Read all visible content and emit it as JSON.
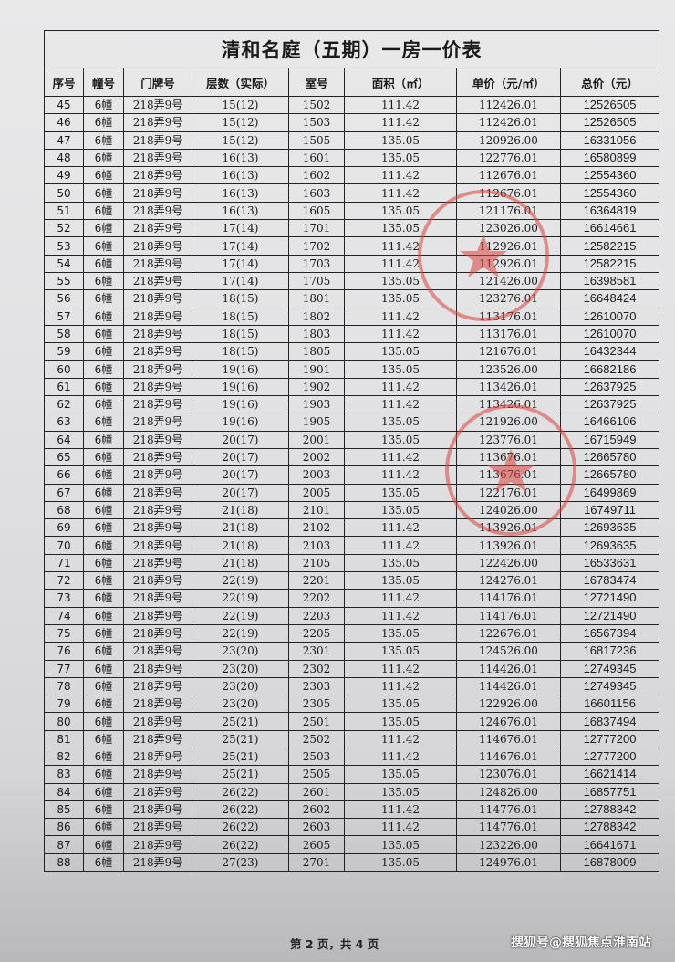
{
  "title": "清和名庭（五期）一房一价表",
  "headers": [
    "序号",
    "幢号",
    "门牌号",
    "层数（实际）",
    "室号",
    "面积（㎡）",
    "单价（元/㎡）",
    "总价（元）"
  ],
  "rows": [
    [
      "45",
      "6幢",
      "218弄9号",
      "15(12)",
      "1502",
      "111.42",
      "112426.01",
      "12526505"
    ],
    [
      "46",
      "6幢",
      "218弄9号",
      "15(12)",
      "1503",
      "111.42",
      "112426.01",
      "12526505"
    ],
    [
      "47",
      "6幢",
      "218弄9号",
      "15(12)",
      "1505",
      "135.05",
      "120926.00",
      "16331056"
    ],
    [
      "48",
      "6幢",
      "218弄9号",
      "16(13)",
      "1601",
      "135.05",
      "122776.01",
      "16580899"
    ],
    [
      "49",
      "6幢",
      "218弄9号",
      "16(13)",
      "1602",
      "111.42",
      "112676.01",
      "12554360"
    ],
    [
      "50",
      "6幢",
      "218弄9号",
      "16(13)",
      "1603",
      "111.42",
      "112676.01",
      "12554360"
    ],
    [
      "51",
      "6幢",
      "218弄9号",
      "16(13)",
      "1605",
      "135.05",
      "121176.01",
      "16364819"
    ],
    [
      "52",
      "6幢",
      "218弄9号",
      "17(14)",
      "1701",
      "135.05",
      "123026.00",
      "16614661"
    ],
    [
      "53",
      "6幢",
      "218弄9号",
      "17(14)",
      "1702",
      "111.42",
      "112926.01",
      "12582215"
    ],
    [
      "54",
      "6幢",
      "218弄9号",
      "17(14)",
      "1703",
      "111.42",
      "112926.01",
      "12582215"
    ],
    [
      "55",
      "6幢",
      "218弄9号",
      "17(14)",
      "1705",
      "135.05",
      "121426.00",
      "16398581"
    ],
    [
      "56",
      "6幢",
      "218弄9号",
      "18(15)",
      "1801",
      "135.05",
      "123276.01",
      "16648424"
    ],
    [
      "57",
      "6幢",
      "218弄9号",
      "18(15)",
      "1802",
      "111.42",
      "113176.01",
      "12610070"
    ],
    [
      "58",
      "6幢",
      "218弄9号",
      "18(15)",
      "1803",
      "111.42",
      "113176.01",
      "12610070"
    ],
    [
      "59",
      "6幢",
      "218弄9号",
      "18(15)",
      "1805",
      "135.05",
      "121676.01",
      "16432344"
    ],
    [
      "60",
      "6幢",
      "218弄9号",
      "19(16)",
      "1901",
      "135.05",
      "123526.00",
      "16682186"
    ],
    [
      "61",
      "6幢",
      "218弄9号",
      "19(16)",
      "1902",
      "111.42",
      "113426.01",
      "12637925"
    ],
    [
      "62",
      "6幢",
      "218弄9号",
      "19(16)",
      "1903",
      "111.42",
      "113426.01",
      "12637925"
    ],
    [
      "63",
      "6幢",
      "218弄9号",
      "19(16)",
      "1905",
      "135.05",
      "121926.00",
      "16466106"
    ],
    [
      "64",
      "6幢",
      "218弄9号",
      "20(17)",
      "2001",
      "135.05",
      "123776.01",
      "16715949"
    ],
    [
      "65",
      "6幢",
      "218弄9号",
      "20(17)",
      "2002",
      "111.42",
      "113676.01",
      "12665780"
    ],
    [
      "66",
      "6幢",
      "218弄9号",
      "20(17)",
      "2003",
      "111.42",
      "113676.01",
      "12665780"
    ],
    [
      "67",
      "6幢",
      "218弄9号",
      "20(17)",
      "2005",
      "135.05",
      "122176.01",
      "16499869"
    ],
    [
      "68",
      "6幢",
      "218弄9号",
      "21(18)",
      "2101",
      "135.05",
      "124026.00",
      "16749711"
    ],
    [
      "69",
      "6幢",
      "218弄9号",
      "21(18)",
      "2102",
      "111.42",
      "113926.01",
      "12693635"
    ],
    [
      "70",
      "6幢",
      "218弄9号",
      "21(18)",
      "2103",
      "111.42",
      "113926.01",
      "12693635"
    ],
    [
      "71",
      "6幢",
      "218弄9号",
      "21(18)",
      "2105",
      "135.05",
      "122426.00",
      "16533631"
    ],
    [
      "72",
      "6幢",
      "218弄9号",
      "22(19)",
      "2201",
      "135.05",
      "124276.01",
      "16783474"
    ],
    [
      "73",
      "6幢",
      "218弄9号",
      "22(19)",
      "2202",
      "111.42",
      "114176.01",
      "12721490"
    ],
    [
      "74",
      "6幢",
      "218弄9号",
      "22(19)",
      "2203",
      "111.42",
      "114176.01",
      "12721490"
    ],
    [
      "75",
      "6幢",
      "218弄9号",
      "22(19)",
      "2205",
      "135.05",
      "122676.01",
      "16567394"
    ],
    [
      "76",
      "6幢",
      "218弄9号",
      "23(20)",
      "2301",
      "135.05",
      "124526.00",
      "16817236"
    ],
    [
      "77",
      "6幢",
      "218弄9号",
      "23(20)",
      "2302",
      "111.42",
      "114426.01",
      "12749345"
    ],
    [
      "78",
      "6幢",
      "218弄9号",
      "23(20)",
      "2303",
      "111.42",
      "114426.01",
      "12749345"
    ],
    [
      "79",
      "6幢",
      "218弄9号",
      "23(20)",
      "2305",
      "135.05",
      "122926.00",
      "16601156"
    ],
    [
      "80",
      "6幢",
      "218弄9号",
      "25(21)",
      "2501",
      "135.05",
      "124676.01",
      "16837494"
    ],
    [
      "81",
      "6幢",
      "218弄9号",
      "25(21)",
      "2502",
      "111.42",
      "114676.01",
      "12777200"
    ],
    [
      "82",
      "6幢",
      "218弄9号",
      "25(21)",
      "2503",
      "111.42",
      "114676.01",
      "12777200"
    ],
    [
      "83",
      "6幢",
      "218弄9号",
      "25(21)",
      "2505",
      "135.05",
      "123076.01",
      "16621414"
    ],
    [
      "84",
      "6幢",
      "218弄9号",
      "26(22)",
      "2601",
      "135.05",
      "124826.00",
      "16857751"
    ],
    [
      "85",
      "6幢",
      "218弄9号",
      "26(22)",
      "2602",
      "111.42",
      "114776.01",
      "12788342"
    ],
    [
      "86",
      "6幢",
      "218弄9号",
      "26(22)",
      "2603",
      "111.42",
      "114776.01",
      "12788342"
    ],
    [
      "87",
      "6幢",
      "218弄9号",
      "26(22)",
      "2605",
      "135.05",
      "123226.00",
      "16641671"
    ],
    [
      "88",
      "6幢",
      "218弄9号",
      "27(23)",
      "2701",
      "135.05",
      "124976.01",
      "16878009"
    ]
  ],
  "footer": {
    "page": "第 2 页，共 4 页",
    "watermark": "搜狐号@搜狐焦点淮南站"
  },
  "stamp_color": "#d9453f"
}
